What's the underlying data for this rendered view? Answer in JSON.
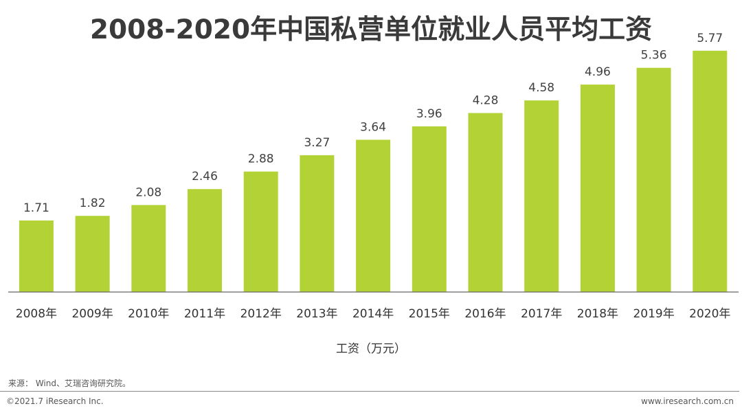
{
  "chart_data": {
    "type": "bar",
    "title": "2008-2020年中国私营单位就业人员平均工资",
    "categories": [
      "2008年",
      "2009年",
      "2010年",
      "2011年",
      "2012年",
      "2013年",
      "2014年",
      "2015年",
      "2016年",
      "2017年",
      "2018年",
      "2019年",
      "2020年"
    ],
    "values": [
      1.71,
      1.82,
      2.08,
      2.46,
      2.88,
      3.27,
      3.64,
      3.96,
      4.28,
      4.58,
      4.96,
      5.36,
      5.77
    ],
    "value_labels": [
      "1.71",
      "1.82",
      "2.08",
      "2.46",
      "2.88",
      "3.27",
      "3.64",
      "3.96",
      "4.28",
      "4.58",
      "4.96",
      "5.36",
      "5.77"
    ],
    "xlabel": "工资（万元）",
    "ylabel": "",
    "ylim": [
      0,
      6.0
    ],
    "grid": false,
    "bar_color": "#b2d235"
  },
  "footer": {
    "source": "来源： Wind、艾瑞咨询研究院。",
    "copyright": "©2021.7 iResearch Inc.",
    "website": "www.iresearch.com.cn"
  }
}
